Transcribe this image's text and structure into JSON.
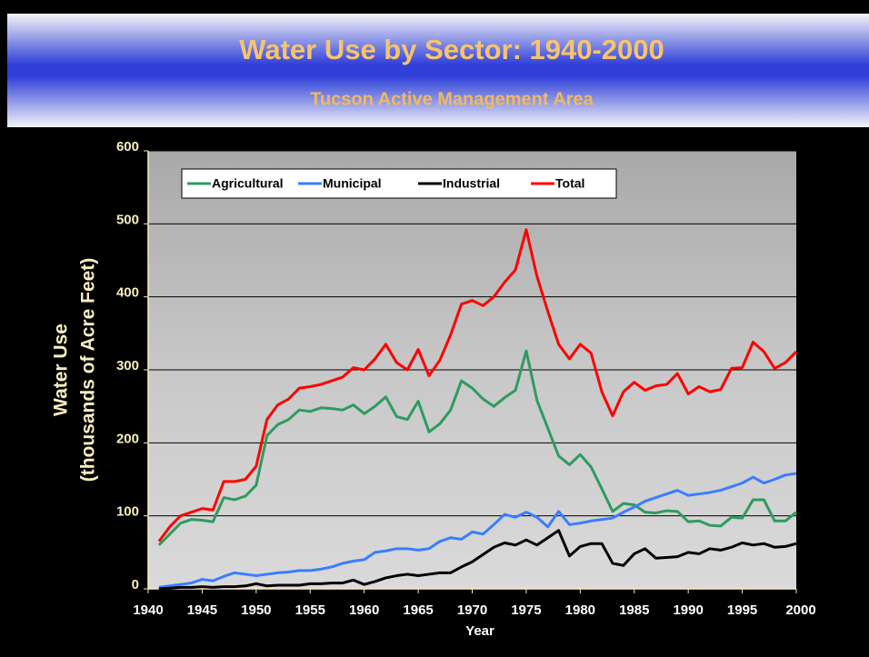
{
  "chart_data": {
    "type": "line",
    "title": "Water Use by Sector: 1940-2000",
    "subtitle": "Tucson Active Management Area",
    "xlabel": "Year",
    "ylabel": [
      "Water Use",
      "(thousands of Acre Feet)"
    ],
    "x": [
      1941,
      1942,
      1943,
      1944,
      1945,
      1946,
      1947,
      1948,
      1949,
      1950,
      1951,
      1952,
      1953,
      1954,
      1955,
      1956,
      1957,
      1958,
      1959,
      1960,
      1961,
      1962,
      1963,
      1964,
      1965,
      1966,
      1967,
      1968,
      1969,
      1970,
      1971,
      1972,
      1973,
      1974,
      1975,
      1976,
      1977,
      1978,
      1979,
      1980,
      1981,
      1982,
      1983,
      1984,
      1985,
      1986,
      1987,
      1988,
      1989,
      1990,
      1991,
      1992,
      1993,
      1994,
      1995,
      1996,
      1997,
      1998,
      1999,
      2000
    ],
    "series": [
      {
        "name": "Agricultural",
        "color": "#2e9b5f",
        "values": [
          60,
          75,
          90,
          95,
          94,
          92,
          125,
          122,
          127,
          142,
          210,
          225,
          232,
          245,
          243,
          248,
          247,
          245,
          252,
          240,
          250,
          263,
          236,
          232,
          257,
          215,
          226,
          245,
          285,
          275,
          260,
          250,
          262,
          272,
          326,
          258,
          220,
          182,
          170,
          184,
          167,
          137,
          106,
          117,
          115,
          105,
          104,
          107,
          106,
          92,
          93,
          87,
          86,
          98,
          97,
          122,
          122,
          93,
          93,
          105
        ]
      },
      {
        "name": "Municipal",
        "color": "#3a7dff",
        "values": [
          2,
          4,
          6,
          8,
          13,
          11,
          17,
          22,
          20,
          18,
          20,
          22,
          23,
          25,
          25,
          27,
          30,
          35,
          38,
          40,
          50,
          52,
          55,
          55,
          53,
          55,
          65,
          70,
          68,
          78,
          75,
          88,
          102,
          98,
          105,
          98,
          85,
          106,
          88,
          90,
          93,
          95,
          97,
          105,
          112,
          120,
          125,
          130,
          135,
          128,
          130,
          132,
          135,
          140,
          145,
          153,
          145,
          150,
          156,
          158
        ]
      },
      {
        "name": "Industrial",
        "color": "#000000",
        "values": [
          0,
          1,
          2,
          2,
          3,
          2,
          3,
          3,
          4,
          7,
          4,
          5,
          5,
          5,
          7,
          7,
          8,
          8,
          12,
          6,
          10,
          15,
          18,
          20,
          18,
          20,
          22,
          22,
          30,
          37,
          47,
          57,
          63,
          60,
          67,
          60,
          70,
          80,
          45,
          58,
          62,
          62,
          35,
          32,
          48,
          55,
          42,
          43,
          44,
          50,
          48,
          55,
          53,
          57,
          63,
          60,
          62,
          57,
          58,
          62
        ]
      },
      {
        "name": "Total",
        "color": "#ff0000",
        "values": [
          65,
          85,
          100,
          105,
          110,
          108,
          147,
          147,
          150,
          168,
          232,
          252,
          260,
          275,
          277,
          280,
          285,
          290,
          303,
          300,
          315,
          335,
          310,
          300,
          328,
          292,
          313,
          348,
          390,
          395,
          388,
          400,
          420,
          437,
          492,
          428,
          380,
          335,
          315,
          335,
          323,
          270,
          237,
          270,
          283,
          272,
          278,
          280,
          295,
          267,
          277,
          270,
          273,
          302,
          303,
          338,
          325,
          302,
          310,
          325
        ]
      }
    ],
    "xlim": [
      1940,
      2000
    ],
    "xticks": [
      1940,
      1945,
      1950,
      1955,
      1960,
      1965,
      1970,
      1975,
      1980,
      1985,
      1990,
      1995,
      2000
    ],
    "ylim": [
      0,
      600
    ],
    "yticks": [
      0,
      100,
      200,
      300,
      400,
      500,
      600
    ],
    "grid": true,
    "legend": "top-left"
  }
}
